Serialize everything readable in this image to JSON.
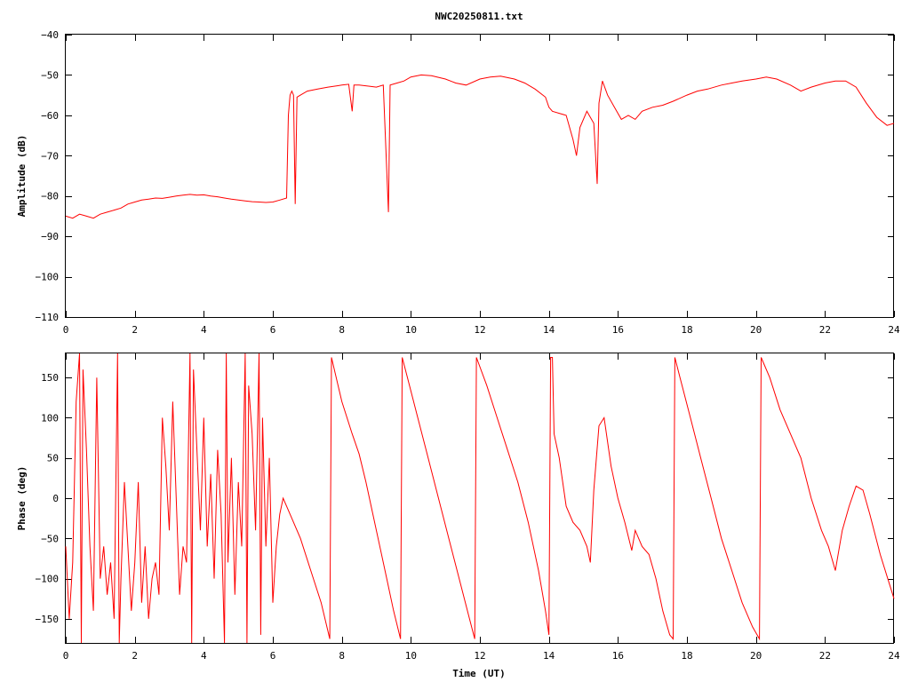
{
  "title": "NWC20250811.txt",
  "colors": {
    "series": "#ff0000",
    "axes": "#000000",
    "background": "#ffffff"
  },
  "chart_data": [
    {
      "type": "line",
      "ylabel": "Amplitude (dB)",
      "xlabel": "",
      "xlim": [
        0,
        24
      ],
      "ylim": [
        -110,
        -40
      ],
      "xticks": [
        0,
        2,
        4,
        6,
        8,
        10,
        12,
        14,
        16,
        18,
        20,
        22,
        24
      ],
      "yticks": [
        -40,
        -50,
        -60,
        -70,
        -80,
        -90,
        -100,
        -110
      ],
      "grid": false,
      "series": [
        {
          "color": "#ff0000",
          "points": [
            [
              0.0,
              -85
            ],
            [
              0.2,
              -85.5
            ],
            [
              0.4,
              -84.5
            ],
            [
              0.6,
              -85
            ],
            [
              0.8,
              -85.5
            ],
            [
              1.0,
              -84.5
            ],
            [
              1.2,
              -84
            ],
            [
              1.4,
              -83.5
            ],
            [
              1.6,
              -83
            ],
            [
              1.8,
              -82
            ],
            [
              2.0,
              -81.5
            ],
            [
              2.2,
              -81
            ],
            [
              2.4,
              -80.8
            ],
            [
              2.6,
              -80.5
            ],
            [
              2.8,
              -80.6
            ],
            [
              3.0,
              -80.3
            ],
            [
              3.2,
              -80
            ],
            [
              3.4,
              -79.8
            ],
            [
              3.6,
              -79.6
            ],
            [
              3.8,
              -79.8
            ],
            [
              4.0,
              -79.7
            ],
            [
              4.2,
              -80
            ],
            [
              4.4,
              -80.2
            ],
            [
              4.6,
              -80.5
            ],
            [
              4.8,
              -80.8
            ],
            [
              5.0,
              -81
            ],
            [
              5.2,
              -81.2
            ],
            [
              5.4,
              -81.4
            ],
            [
              5.6,
              -81.5
            ],
            [
              5.8,
              -81.6
            ],
            [
              6.0,
              -81.5
            ],
            [
              6.2,
              -81
            ],
            [
              6.4,
              -80.5
            ],
            [
              6.45,
              -60
            ],
            [
              6.5,
              -55
            ],
            [
              6.55,
              -54
            ],
            [
              6.6,
              -55
            ],
            [
              6.65,
              -82
            ],
            [
              6.7,
              -55.5
            ],
            [
              6.8,
              -55
            ],
            [
              7.0,
              -54
            ],
            [
              7.3,
              -53.5
            ],
            [
              7.6,
              -53
            ],
            [
              8.0,
              -52.5
            ],
            [
              8.2,
              -52.3
            ],
            [
              8.3,
              -59
            ],
            [
              8.35,
              -52.5
            ],
            [
              8.5,
              -52.5
            ],
            [
              8.8,
              -52.8
            ],
            [
              9.0,
              -53
            ],
            [
              9.2,
              -52.5
            ],
            [
              9.35,
              -84
            ],
            [
              9.4,
              -52.5
            ],
            [
              9.6,
              -52
            ],
            [
              9.8,
              -51.5
            ],
            [
              10.0,
              -50.5
            ],
            [
              10.3,
              -50
            ],
            [
              10.6,
              -50.2
            ],
            [
              11.0,
              -51
            ],
            [
              11.3,
              -52
            ],
            [
              11.6,
              -52.5
            ],
            [
              12.0,
              -51
            ],
            [
              12.3,
              -50.5
            ],
            [
              12.6,
              -50.3
            ],
            [
              13.0,
              -51
            ],
            [
              13.3,
              -52
            ],
            [
              13.6,
              -53.5
            ],
            [
              13.9,
              -55.5
            ],
            [
              14.0,
              -58
            ],
            [
              14.1,
              -59
            ],
            [
              14.3,
              -59.5
            ],
            [
              14.5,
              -60
            ],
            [
              14.7,
              -66
            ],
            [
              14.8,
              -70
            ],
            [
              14.9,
              -63
            ],
            [
              15.1,
              -59
            ],
            [
              15.3,
              -62
            ],
            [
              15.4,
              -77
            ],
            [
              15.45,
              -57
            ],
            [
              15.55,
              -51.5
            ],
            [
              15.7,
              -55
            ],
            [
              15.9,
              -58
            ],
            [
              16.1,
              -61
            ],
            [
              16.3,
              -60
            ],
            [
              16.5,
              -61
            ],
            [
              16.7,
              -59
            ],
            [
              17.0,
              -58
            ],
            [
              17.3,
              -57.5
            ],
            [
              17.6,
              -56.5
            ],
            [
              18.0,
              -55
            ],
            [
              18.3,
              -54
            ],
            [
              18.6,
              -53.5
            ],
            [
              19.0,
              -52.5
            ],
            [
              19.3,
              -52
            ],
            [
              19.6,
              -51.5
            ],
            [
              20.0,
              -51
            ],
            [
              20.3,
              -50.5
            ],
            [
              20.6,
              -51
            ],
            [
              21.0,
              -52.5
            ],
            [
              21.3,
              -54
            ],
            [
              21.6,
              -53
            ],
            [
              22.0,
              -52
            ],
            [
              22.3,
              -51.5
            ],
            [
              22.6,
              -51.5
            ],
            [
              22.9,
              -53
            ],
            [
              23.2,
              -57
            ],
            [
              23.5,
              -60.5
            ],
            [
              23.8,
              -62.5
            ],
            [
              24.0,
              -62
            ]
          ]
        }
      ]
    },
    {
      "type": "line",
      "ylabel": "Phase (deg)",
      "xlabel": "Time (UT)",
      "xlim": [
        0,
        24
      ],
      "ylim": [
        -180,
        180
      ],
      "xticks": [
        0,
        2,
        4,
        6,
        8,
        10,
        12,
        14,
        16,
        18,
        20,
        22,
        24
      ],
      "yticks": [
        150,
        100,
        50,
        0,
        -50,
        -100,
        -150
      ],
      "grid": false,
      "series": [
        {
          "color": "#ff0000",
          "points": [
            [
              0.0,
              -60
            ],
            [
              0.1,
              -150
            ],
            [
              0.2,
              -80
            ],
            [
              0.3,
              120
            ],
            [
              0.4,
              180
            ],
            [
              0.45,
              -180
            ],
            [
              0.5,
              160
            ],
            [
              0.6,
              60
            ],
            [
              0.7,
              -60
            ],
            [
              0.8,
              -140
            ],
            [
              0.9,
              150
            ],
            [
              1.0,
              -100
            ],
            [
              1.1,
              -60
            ],
            [
              1.2,
              -120
            ],
            [
              1.3,
              -80
            ],
            [
              1.4,
              -150
            ],
            [
              1.5,
              180
            ],
            [
              1.55,
              -180
            ],
            [
              1.6,
              -100
            ],
            [
              1.7,
              20
            ],
            [
              1.8,
              -60
            ],
            [
              1.9,
              -140
            ],
            [
              2.0,
              -80
            ],
            [
              2.1,
              20
            ],
            [
              2.2,
              -130
            ],
            [
              2.3,
              -60
            ],
            [
              2.4,
              -150
            ],
            [
              2.5,
              -100
            ],
            [
              2.6,
              -80
            ],
            [
              2.7,
              -120
            ],
            [
              2.8,
              100
            ],
            [
              2.9,
              40
            ],
            [
              3.0,
              -40
            ],
            [
              3.1,
              120
            ],
            [
              3.2,
              0
            ],
            [
              3.3,
              -120
            ],
            [
              3.4,
              -60
            ],
            [
              3.5,
              -80
            ],
            [
              3.6,
              180
            ],
            [
              3.65,
              -180
            ],
            [
              3.7,
              160
            ],
            [
              3.8,
              60
            ],
            [
              3.9,
              -40
            ],
            [
              4.0,
              100
            ],
            [
              4.1,
              -60
            ],
            [
              4.2,
              30
            ],
            [
              4.3,
              -100
            ],
            [
              4.4,
              60
            ],
            [
              4.5,
              -20
            ],
            [
              4.6,
              -180
            ],
            [
              4.65,
              180
            ],
            [
              4.7,
              -80
            ],
            [
              4.8,
              50
            ],
            [
              4.9,
              -120
            ],
            [
              5.0,
              20
            ],
            [
              5.1,
              -60
            ],
            [
              5.2,
              180
            ],
            [
              5.25,
              -180
            ],
            [
              5.3,
              140
            ],
            [
              5.4,
              80
            ],
            [
              5.5,
              -40
            ],
            [
              5.6,
              180
            ],
            [
              5.65,
              -170
            ],
            [
              5.7,
              100
            ],
            [
              5.8,
              -60
            ],
            [
              5.9,
              50
            ],
            [
              6.0,
              -130
            ],
            [
              6.1,
              -60
            ],
            [
              6.2,
              -20
            ],
            [
              6.3,
              0
            ],
            [
              6.5,
              -20
            ],
            [
              6.8,
              -50
            ],
            [
              7.1,
              -90
            ],
            [
              7.4,
              -130
            ],
            [
              7.65,
              -175
            ],
            [
              7.7,
              175
            ],
            [
              8.0,
              120
            ],
            [
              8.3,
              80
            ],
            [
              8.5,
              55
            ],
            [
              8.7,
              20
            ],
            [
              8.9,
              -20
            ],
            [
              9.1,
              -60
            ],
            [
              9.3,
              -100
            ],
            [
              9.5,
              -140
            ],
            [
              9.7,
              -175
            ],
            [
              9.75,
              175
            ],
            [
              9.9,
              150
            ],
            [
              10.2,
              100
            ],
            [
              10.5,
              50
            ],
            [
              10.8,
              0
            ],
            [
              11.1,
              -50
            ],
            [
              11.4,
              -100
            ],
            [
              11.7,
              -150
            ],
            [
              11.85,
              -175
            ],
            [
              11.9,
              175
            ],
            [
              12.2,
              140
            ],
            [
              12.5,
              100
            ],
            [
              12.8,
              60
            ],
            [
              13.1,
              20
            ],
            [
              13.4,
              -30
            ],
            [
              13.7,
              -90
            ],
            [
              13.9,
              -140
            ],
            [
              14.0,
              -170
            ],
            [
              14.05,
              175
            ],
            [
              14.1,
              175
            ],
            [
              14.15,
              80
            ],
            [
              14.3,
              50
            ],
            [
              14.5,
              -10
            ],
            [
              14.7,
              -30
            ],
            [
              14.9,
              -40
            ],
            [
              15.1,
              -60
            ],
            [
              15.2,
              -80
            ],
            [
              15.3,
              10
            ],
            [
              15.45,
              90
            ],
            [
              15.6,
              100
            ],
            [
              15.8,
              40
            ],
            [
              16.0,
              0
            ],
            [
              16.2,
              -30
            ],
            [
              16.4,
              -65
            ],
            [
              16.5,
              -40
            ],
            [
              16.7,
              -60
            ],
            [
              16.9,
              -70
            ],
            [
              17.1,
              -100
            ],
            [
              17.3,
              -140
            ],
            [
              17.5,
              -170
            ],
            [
              17.6,
              -175
            ],
            [
              17.65,
              175
            ],
            [
              17.8,
              150
            ],
            [
              18.1,
              100
            ],
            [
              18.4,
              50
            ],
            [
              18.7,
              0
            ],
            [
              19.0,
              -50
            ],
            [
              19.3,
              -90
            ],
            [
              19.6,
              -130
            ],
            [
              19.9,
              -160
            ],
            [
              20.1,
              -175
            ],
            [
              20.15,
              175
            ],
            [
              20.4,
              150
            ],
            [
              20.7,
              110
            ],
            [
              21.0,
              80
            ],
            [
              21.3,
              50
            ],
            [
              21.6,
              0
            ],
            [
              21.9,
              -40
            ],
            [
              22.1,
              -60
            ],
            [
              22.3,
              -90
            ],
            [
              22.5,
              -40
            ],
            [
              22.7,
              -10
            ],
            [
              22.9,
              15
            ],
            [
              23.1,
              10
            ],
            [
              23.3,
              -20
            ],
            [
              23.6,
              -70
            ],
            [
              24.0,
              -125
            ]
          ]
        }
      ]
    }
  ]
}
